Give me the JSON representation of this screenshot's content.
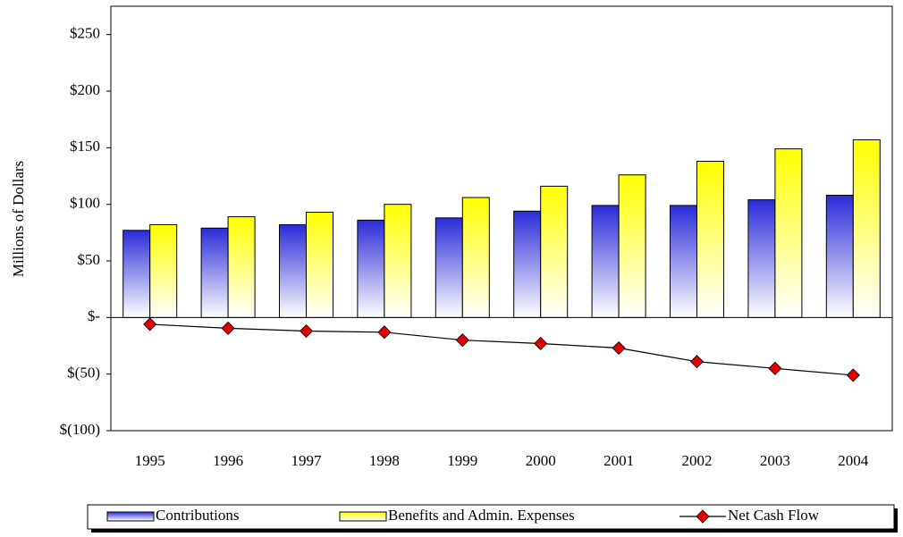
{
  "chart_data": {
    "type": "bar-line",
    "y_label": "Millions of Dollars",
    "categories": [
      "1995",
      "1996",
      "1997",
      "1998",
      "1999",
      "2000",
      "2001",
      "2002",
      "2003",
      "2004"
    ],
    "series": [
      {
        "name": "Contributions",
        "type": "bar",
        "color": "#2b2bd9",
        "values": [
          77,
          79,
          82,
          86,
          88,
          94,
          99,
          99,
          104,
          108
        ]
      },
      {
        "name": "Benefits and Admin. Expenses",
        "type": "bar",
        "color": "#ffff00",
        "values": [
          82,
          89,
          93,
          100,
          106,
          116,
          126,
          138,
          149,
          157
        ]
      },
      {
        "name": "Net Cash Flow",
        "type": "line",
        "color": "#e00000",
        "values": [
          -6,
          -9.5,
          -12,
          -13,
          -20,
          -23,
          -27,
          -39,
          -45,
          -51
        ]
      }
    ],
    "ylim": [
      -100,
      275
    ],
    "yticks": [
      {
        "value": -100,
        "label": "$(100)"
      },
      {
        "value": -50,
        "label": "$(50)"
      },
      {
        "value": 0,
        "label": "$-"
      },
      {
        "value": 50,
        "label": "$50"
      },
      {
        "value": 100,
        "label": "$100"
      },
      {
        "value": 150,
        "label": "$150"
      },
      {
        "value": 200,
        "label": "$200"
      },
      {
        "value": 250,
        "label": "$250"
      }
    ],
    "legend": "bottom"
  }
}
